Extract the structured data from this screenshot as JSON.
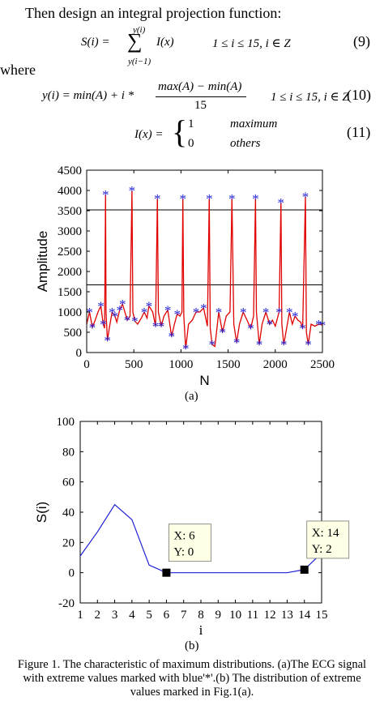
{
  "text": {
    "intro": "Then design an integral projection function:",
    "where": "where",
    "eq9_num": "(9)",
    "eq10_num": "(10)",
    "eq11_num": "(11)",
    "eq9_lhs": "S(i) =",
    "eq9_top": "y(i)",
    "eq9_bottom": "y(i−1)",
    "eq9_term": "I(x)",
    "eq9_cond": "1 ≤ i ≤ 15, i ∈ Z",
    "eq10_lhs": "y(i) = min(A) + i *",
    "eq10_num_part": "max(A) − min(A)",
    "eq10_den": "15",
    "eq10_cond": "1 ≤ i ≤ 15, i ∈ Z",
    "eq11_lhs": "I(x) =",
    "eq11_case1_val": "1",
    "eq11_case1_cond": "maximum",
    "eq11_case2_val": "0",
    "eq11_case2_cond": "others",
    "label_a": "(a)",
    "label_b": "(b)",
    "caption": [
      "Figure 1.    The characteristic of maximum distributions. (a)The ECG signal",
      "with extreme values marked with blue'*'.(b) The distribution of extreme",
      "values marked in Fig.1(a)."
    ]
  },
  "colors": {
    "signal": "#e00000",
    "marker": "#1f1fd6",
    "line_b": "#1f1fd6",
    "frame": "#000000"
  },
  "chart_data": [
    {
      "type": "line",
      "xlabel": "N",
      "ylabel": "Amplitude",
      "xlim": [
        0,
        2500
      ],
      "ylim": [
        0,
        4500
      ],
      "xticks": [
        0,
        500,
        1000,
        1500,
        2000,
        2500
      ],
      "yticks": [
        0,
        500,
        1000,
        1500,
        2000,
        2500,
        3000,
        3500,
        4000,
        4500
      ],
      "hlines": [
        3520,
        1670
      ],
      "series": [
        {
          "values": [
            [
              0,
              700
            ],
            [
              30,
              1000
            ],
            [
              60,
              620
            ],
            [
              90,
              800
            ],
            [
              120,
              1000
            ],
            [
              150,
              1150
            ],
            [
              175,
              700
            ],
            [
              190,
              600
            ],
            [
              200,
              3900
            ],
            [
              205,
              1000
            ],
            [
              220,
              300
            ],
            [
              240,
              600
            ],
            [
              270,
              1000
            ],
            [
              300,
              900
            ],
            [
              320,
              750
            ],
            [
              350,
              1050
            ],
            [
              380,
              1200
            ],
            [
              430,
              800
            ],
            [
              460,
              900
            ],
            [
              480,
              4000
            ],
            [
              490,
              1000
            ],
            [
              510,
              780
            ],
            [
              540,
              700
            ],
            [
              580,
              850
            ],
            [
              610,
              1000
            ],
            [
              640,
              850
            ],
            [
              660,
              1150
            ],
            [
              700,
              1000
            ],
            [
              730,
              650
            ],
            [
              750,
              3800
            ],
            [
              760,
              1000
            ],
            [
              790,
              650
            ],
            [
              820,
              900
            ],
            [
              860,
              1050
            ],
            [
              900,
              400
            ],
            [
              930,
              700
            ],
            [
              960,
              950
            ],
            [
              990,
              900
            ],
            [
              1010,
              1000
            ],
            [
              1020,
              3800
            ],
            [
              1030,
              900
            ],
            [
              1050,
              100
            ],
            [
              1080,
              700
            ],
            [
              1120,
              800
            ],
            [
              1160,
              1000
            ],
            [
              1200,
              1000
            ],
            [
              1240,
              1100
            ],
            [
              1280,
              650
            ],
            [
              1300,
              3800
            ],
            [
              1310,
              600
            ],
            [
              1330,
              200
            ],
            [
              1360,
              150
            ],
            [
              1400,
              1000
            ],
            [
              1440,
              500
            ],
            [
              1480,
              900
            ],
            [
              1520,
              1000
            ],
            [
              1540,
              3800
            ],
            [
              1560,
              700
            ],
            [
              1590,
              250
            ],
            [
              1620,
              700
            ],
            [
              1660,
              1000
            ],
            [
              1700,
              800
            ],
            [
              1740,
              600
            ],
            [
              1770,
              900
            ],
            [
              1790,
              3800
            ],
            [
              1800,
              1000
            ],
            [
              1830,
              200
            ],
            [
              1860,
              700
            ],
            [
              1900,
              1000
            ],
            [
              1940,
              700
            ],
            [
              1970,
              800
            ],
            [
              2000,
              650
            ],
            [
              2040,
              1000
            ],
            [
              2060,
              3700
            ],
            [
              2070,
              700
            ],
            [
              2090,
              200
            ],
            [
              2120,
              600
            ],
            [
              2150,
              1000
            ],
            [
              2180,
              700
            ],
            [
              2210,
              900
            ],
            [
              2240,
              800
            ],
            [
              2270,
              750
            ],
            [
              2290,
              600
            ],
            [
              2320,
              3850
            ],
            [
              2330,
              500
            ],
            [
              2350,
              200
            ],
            [
              2380,
              700
            ],
            [
              2420,
              650
            ],
            [
              2460,
              700
            ],
            [
              2500,
              680
            ]
          ]
        },
        {
          "values": [
            [
              30,
              1000
            ],
            [
              60,
              620
            ],
            [
              150,
              1150
            ],
            [
              175,
              700
            ],
            [
              200,
              3900
            ],
            [
              220,
              300
            ],
            [
              270,
              1000
            ],
            [
              300,
              900
            ],
            [
              350,
              1050
            ],
            [
              380,
              1200
            ],
            [
              430,
              800
            ],
            [
              480,
              4000
            ],
            [
              510,
              780
            ],
            [
              610,
              1000
            ],
            [
              660,
              1150
            ],
            [
              730,
              650
            ],
            [
              750,
              3800
            ],
            [
              790,
              650
            ],
            [
              860,
              1050
            ],
            [
              900,
              400
            ],
            [
              960,
              950
            ],
            [
              1020,
              3800
            ],
            [
              1050,
              100
            ],
            [
              1160,
              1000
            ],
            [
              1240,
              1100
            ],
            [
              1300,
              3800
            ],
            [
              1330,
              200
            ],
            [
              1400,
              1000
            ],
            [
              1440,
              500
            ],
            [
              1540,
              3800
            ],
            [
              1590,
              250
            ],
            [
              1660,
              1000
            ],
            [
              1740,
              600
            ],
            [
              1790,
              3800
            ],
            [
              1830,
              200
            ],
            [
              1900,
              1000
            ],
            [
              1940,
              700
            ],
            [
              2040,
              1000
            ],
            [
              2060,
              3700
            ],
            [
              2090,
              200
            ],
            [
              2150,
              1000
            ],
            [
              2210,
              900
            ],
            [
              2290,
              600
            ],
            [
              2320,
              3850
            ],
            [
              2350,
              200
            ],
            [
              2460,
              700
            ],
            [
              2500,
              680
            ]
          ]
        }
      ]
    },
    {
      "type": "line",
      "xlabel": "i",
      "ylabel": "S(i)",
      "xlim": [
        1,
        15
      ],
      "ylim": [
        -20,
        100
      ],
      "xticks": [
        1,
        2,
        3,
        4,
        5,
        6,
        7,
        8,
        9,
        10,
        11,
        12,
        13,
        14,
        15
      ],
      "yticks": [
        -20,
        0,
        20,
        40,
        60,
        80,
        100
      ],
      "series": [
        {
          "x": [
            1,
            2,
            3,
            4,
            5,
            6,
            7,
            8,
            9,
            10,
            11,
            12,
            13,
            14,
            15
          ],
          "values": [
            11,
            27,
            45,
            35,
            5,
            0,
            0,
            0,
            0,
            0,
            0,
            0,
            0,
            2,
            13
          ]
        }
      ],
      "datatips": [
        {
          "x": 6,
          "y": 0,
          "label": [
            "X: 6",
            "Y: 0"
          ]
        },
        {
          "x": 14,
          "y": 2,
          "label": [
            "X: 14",
            "Y: 2"
          ]
        }
      ]
    }
  ]
}
